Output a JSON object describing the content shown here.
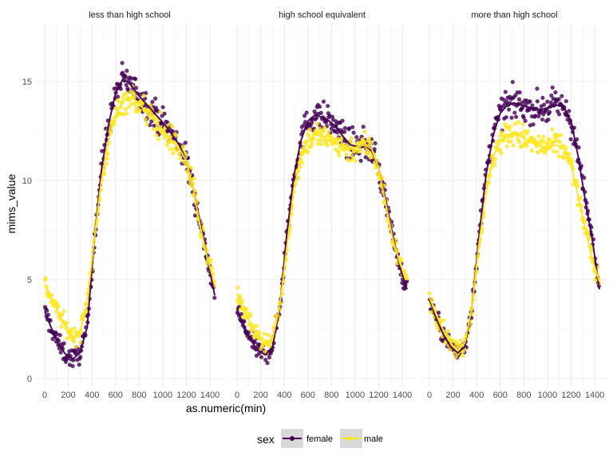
{
  "chart_data": {
    "type": "scatter",
    "xlabel": "as.numeric(min)",
    "ylabel": "mims_value",
    "xlim": [
      0,
      1440
    ],
    "ylim": [
      0,
      17.5
    ],
    "x_ticks": [
      0,
      200,
      400,
      600,
      800,
      1000,
      1200,
      1400
    ],
    "y_ticks": [
      0,
      5,
      10,
      15
    ],
    "grid": true,
    "smooth_lines": true,
    "legend": {
      "title": "sex",
      "position": "bottom",
      "entries": [
        {
          "label": "female",
          "color": "#440154"
        },
        {
          "label": "male",
          "color": "#FDE725"
        }
      ]
    },
    "panels": [
      {
        "title": "less than high school",
        "series": [
          {
            "name": "female",
            "color": "#440154",
            "x": [
              0,
              60,
              120,
              180,
              240,
              300,
              360,
              420,
              480,
              540,
              600,
              660,
              720,
              780,
              840,
              900,
              960,
              1020,
              1080,
              1140,
              1200,
              1260,
              1320,
              1380,
              1440
            ],
            "y": [
              3.4,
              2.5,
              1.7,
              1.2,
              1.0,
              1.3,
              2.6,
              7.0,
              10.5,
              12.8,
              14.4,
              15.1,
              14.9,
              14.4,
              14.0,
              13.6,
              13.2,
              12.8,
              12.3,
              11.8,
              11.0,
              9.5,
              7.8,
              6.0,
              4.2
            ],
            "spread": 0.6
          },
          {
            "name": "male",
            "color": "#FDE725",
            "x": [
              0,
              60,
              120,
              180,
              240,
              300,
              360,
              420,
              480,
              540,
              600,
              660,
              720,
              780,
              840,
              900,
              960,
              1020,
              1080,
              1140,
              1200,
              1260,
              1320,
              1380,
              1440
            ],
            "y": [
              4.8,
              4.0,
              3.3,
              2.6,
              2.1,
              2.3,
              3.9,
              7.0,
              10.0,
              12.0,
              13.3,
              14.0,
              14.2,
              14.0,
              13.6,
              13.2,
              12.8,
              12.4,
              12.0,
              11.6,
              11.0,
              9.5,
              7.6,
              6.0,
              4.8
            ],
            "spread": 0.55
          }
        ]
      },
      {
        "title": "high school equivalent",
        "series": [
          {
            "name": "female",
            "color": "#440154",
            "x": [
              0,
              60,
              120,
              180,
              240,
              300,
              360,
              420,
              480,
              540,
              600,
              660,
              720,
              780,
              840,
              900,
              960,
              1020,
              1080,
              1140,
              1200,
              1260,
              1320,
              1380,
              1440
            ],
            "y": [
              3.5,
              2.6,
              1.9,
              1.4,
              1.2,
              1.6,
              3.5,
              7.2,
              10.2,
              12.0,
              13.0,
              13.3,
              13.2,
              13.0,
              12.7,
              12.2,
              11.8,
              11.7,
              11.8,
              11.5,
              10.6,
              9.0,
              7.2,
              5.6,
              4.5
            ],
            "spread": 0.6
          },
          {
            "name": "male",
            "color": "#FDE725",
            "x": [
              0,
              60,
              120,
              180,
              240,
              300,
              360,
              420,
              480,
              540,
              600,
              660,
              720,
              780,
              840,
              900,
              960,
              1020,
              1080,
              1140,
              1200,
              1260,
              1320,
              1380,
              1440
            ],
            "y": [
              4.3,
              3.4,
              2.7,
              2.1,
              1.8,
              2.0,
              3.6,
              6.5,
              9.5,
              11.3,
              12.0,
              12.3,
              12.2,
              12.0,
              11.9,
              11.7,
              11.6,
              11.7,
              11.8,
              11.6,
              10.6,
              8.8,
              7.0,
              5.8,
              5.0
            ],
            "spread": 0.55
          }
        ]
      },
      {
        "title": "more than high school",
        "series": [
          {
            "name": "female",
            "color": "#440154",
            "x": [
              0,
              60,
              120,
              180,
              240,
              300,
              360,
              420,
              480,
              540,
              600,
              660,
              720,
              780,
              840,
              900,
              960,
              1020,
              1080,
              1140,
              1200,
              1260,
              1320,
              1380,
              1440
            ],
            "y": [
              4.0,
              3.0,
              2.2,
              1.6,
              1.3,
              1.6,
              3.6,
              7.2,
              10.3,
              12.3,
              13.4,
              13.8,
              13.9,
              13.8,
              13.7,
              13.6,
              13.6,
              13.7,
              13.8,
              13.7,
              13.0,
              11.2,
              9.0,
              7.0,
              4.5
            ],
            "spread": 0.6
          },
          {
            "name": "male",
            "color": "#FDE725",
            "x": [
              0,
              60,
              120,
              180,
              240,
              300,
              360,
              420,
              480,
              540,
              600,
              660,
              720,
              780,
              840,
              900,
              960,
              1020,
              1080,
              1140,
              1200,
              1260,
              1320,
              1380,
              1440
            ],
            "y": [
              4.1,
              3.2,
              2.4,
              1.8,
              1.4,
              1.8,
              3.6,
              6.8,
              9.4,
              11.2,
              12.0,
              12.3,
              12.4,
              12.2,
              12.0,
              11.8,
              11.7,
              11.7,
              11.8,
              11.6,
              10.8,
              9.2,
              7.6,
              6.0,
              4.9
            ],
            "spread": 0.55
          }
        ]
      }
    ]
  }
}
